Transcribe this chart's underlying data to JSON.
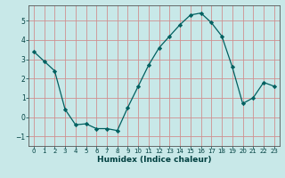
{
  "title": "",
  "xlabel": "Humidex (Indice chaleur)",
  "ylabel": "",
  "background_color": "#c8e8e8",
  "grid_color": "#c0d8d8",
  "line_color": "#006060",
  "marker_color": "#006060",
  "x": [
    0,
    1,
    2,
    3,
    4,
    5,
    6,
    7,
    8,
    9,
    10,
    11,
    12,
    13,
    14,
    15,
    16,
    17,
    18,
    19,
    20,
    21,
    22,
    23
  ],
  "y": [
    3.4,
    2.9,
    2.4,
    0.4,
    -0.4,
    -0.35,
    -0.6,
    -0.6,
    -0.7,
    0.5,
    1.6,
    2.7,
    3.6,
    4.2,
    4.8,
    5.3,
    5.4,
    4.9,
    4.2,
    2.6,
    0.7,
    1.0,
    1.8,
    1.6
  ],
  "ylim": [
    -1.5,
    5.8
  ],
  "xlim": [
    -0.5,
    23.5
  ],
  "yticks": [
    -1,
    0,
    1,
    2,
    3,
    4,
    5
  ],
  "xticks": [
    0,
    1,
    2,
    3,
    4,
    5,
    6,
    7,
    8,
    9,
    10,
    11,
    12,
    13,
    14,
    15,
    16,
    17,
    18,
    19,
    20,
    21,
    22,
    23
  ]
}
